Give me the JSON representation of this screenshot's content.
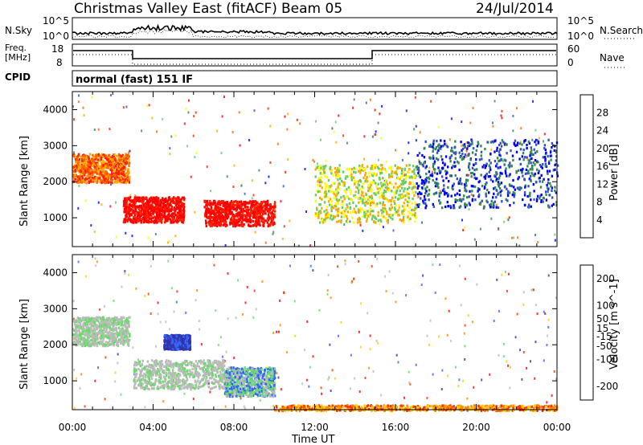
{
  "header": {
    "station": "Christmas Valley East (fitACF)",
    "beam": "Beam 05",
    "date": "24/Jul/2014"
  },
  "strip_nsky": {
    "label": "N.Sky",
    "ticks": [
      "10^5",
      "10^0"
    ],
    "right_label": "N.Search",
    "right_ticks": [
      "10^5",
      "10^0"
    ]
  },
  "strip_freq": {
    "label_line1": "Freq.",
    "label_line2": "[MHz]",
    "ticks": [
      "18",
      "8"
    ],
    "right_label": "Nave",
    "right_ticks": [
      "60",
      "0"
    ]
  },
  "cpid": {
    "label": "CPID",
    "value": "normal (fast) 151 IF"
  },
  "colors": {
    "power": [
      "#0000ff",
      "#3355bb",
      "#338855",
      "#66cc66",
      "#ffff00",
      "#ffaa00",
      "#ff6600",
      "#ff2200",
      "#ff0000"
    ],
    "velocity": [
      "#3333aa",
      "#3366ff",
      "#66dd66",
      "#bbbbbb",
      "#bbbbbb",
      "#ffcc00",
      "#ff8800",
      "#ff3300",
      "#ff0000"
    ]
  },
  "chart_data": [
    {
      "type": "heatmap",
      "name": "Power panel",
      "xlabel": "",
      "ylabel": "Slant Range [km]",
      "x_ticks": [
        "00:00",
        "04:00",
        "08:00",
        "12:00",
        "16:00",
        "20:00",
        "00:00"
      ],
      "y_ticks": [
        1000,
        2000,
        3000,
        4000
      ],
      "ylim": [
        200,
        4500
      ],
      "xlim_hours": [
        0,
        24
      ],
      "colorbar": {
        "label": "Power [dB]",
        "ticks": [
          4,
          8,
          12,
          16,
          20,
          24,
          28
        ],
        "range": [
          0,
          32
        ]
      },
      "features": [
        {
          "t": [
            0,
            2.8
          ],
          "range": [
            2000,
            2800
          ],
          "level": "high"
        },
        {
          "t": [
            2.5,
            5.5
          ],
          "range": [
            900,
            1600
          ],
          "level": "very high"
        },
        {
          "t": [
            6.5,
            10
          ],
          "range": [
            800,
            1500
          ],
          "level": "very high"
        },
        {
          "t": [
            12,
            17
          ],
          "range": [
            900,
            2500
          ],
          "level": "medium"
        },
        {
          "t": [
            17,
            24
          ],
          "range": [
            1300,
            3200
          ],
          "level": "low"
        }
      ]
    },
    {
      "type": "heatmap",
      "name": "Velocity panel",
      "xlabel": "Time UT",
      "ylabel": "Slant Range [km]",
      "x_ticks": [
        "00:00",
        "04:00",
        "08:00",
        "12:00",
        "16:00",
        "20:00",
        "00:00"
      ],
      "y_ticks": [
        1000,
        2000,
        3000,
        4000
      ],
      "ylim": [
        200,
        4500
      ],
      "xlim_hours": [
        0,
        24
      ],
      "colorbar": {
        "label": "Velocity [m s^-1]",
        "ticks": [
          200,
          100,
          50,
          15,
          -15,
          -50,
          -100,
          -200
        ],
        "range": [
          -250,
          250
        ]
      },
      "features": [
        {
          "t": [
            0,
            2.8
          ],
          "range": [
            2000,
            2800
          ],
          "level": "ground scatter"
        },
        {
          "t": [
            3,
            7.5
          ],
          "range": [
            800,
            1600
          ],
          "level": "ground scatter"
        },
        {
          "t": [
            7.5,
            10
          ],
          "range": [
            600,
            1400
          ],
          "level": "positive 15-50"
        },
        {
          "t": [
            10,
            24
          ],
          "range": [
            200,
            350
          ],
          "level": "negative -50 to -100"
        },
        {
          "t": [
            4.5,
            5.8
          ],
          "range": [
            1900,
            2300
          ],
          "level": "positive 100-200"
        }
      ]
    }
  ]
}
